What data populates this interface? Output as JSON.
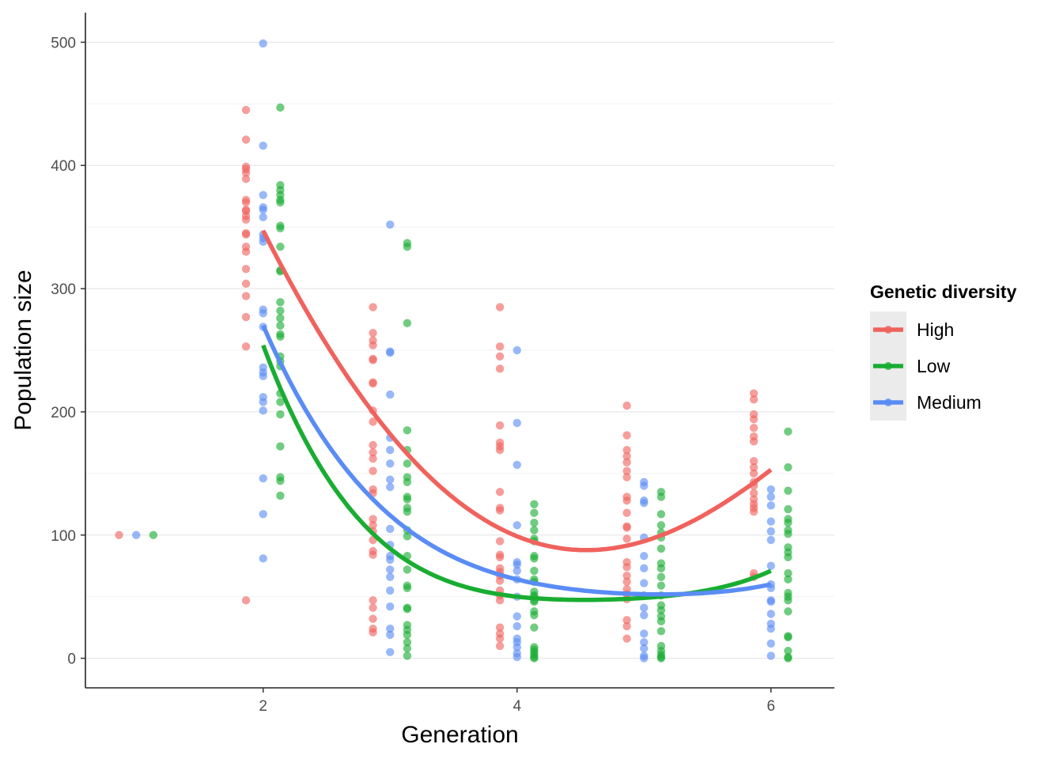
{
  "chart_data": {
    "type": "scatter",
    "xlabel": "Generation",
    "ylabel": "Population size",
    "xlim": [
      0.6,
      6.5
    ],
    "ylim": [
      -24,
      524
    ],
    "x_ticks": [
      2,
      4,
      6
    ],
    "y_ticks": [
      0,
      100,
      200,
      300,
      400,
      500
    ],
    "grid": "horizontal major and minor",
    "legend": {
      "title": "Genetic diversity",
      "position": "right",
      "entries": [
        "High",
        "Low",
        "Medium"
      ]
    },
    "series": [
      {
        "name": "High",
        "color": "#f0625d",
        "dodge": -0.135,
        "points": [
          {
            "x": 1,
            "y": [
              100
            ]
          },
          {
            "x": 2,
            "y": [
              445,
              421,
              399,
              397,
              394,
              389,
              372,
              370,
              364,
              363,
              359,
              356,
              345,
              344,
              334,
              330,
              316,
              304,
              294,
              277,
              253,
              47
            ]
          },
          {
            "x": 3,
            "y": [
              285,
              264,
              258,
              254,
              243,
              242,
              224,
              223,
              201,
              192,
              173,
              167,
              162,
              152,
              137,
              134,
              113,
              108,
              103,
              96,
              87,
              84,
              47,
              41,
              32,
              24,
              21
            ]
          },
          {
            "x": 4,
            "y": [
              285,
              253,
              245,
              235,
              189,
              175,
              172,
              169,
              135,
              122,
              120,
              95,
              84,
              82,
              73,
              70,
              67,
              63,
              55,
              51,
              47,
              25,
              20,
              16,
              10
            ]
          },
          {
            "x": 5,
            "y": [
              205,
              181,
              169,
              164,
              159,
              152,
              147,
              131,
              128,
              118,
              107,
              106,
              97,
              78,
              74,
              67,
              62,
              56,
              52,
              48,
              31,
              26,
              16
            ]
          },
          {
            "x": 6,
            "y": [
              215,
              210,
              198,
              194,
              187,
              180,
              176,
              160,
              155,
              150,
              143,
              140,
              134,
              129,
              125,
              122,
              119,
              69,
              66
            ]
          }
        ],
        "fit": {
          "x": [
            2,
            3,
            4,
            5,
            6
          ],
          "y": [
            347,
            182,
            99,
            95,
            153
          ]
        }
      },
      {
        "name": "Low",
        "color": "#19ad32",
        "dodge": 0.135,
        "points": [
          {
            "x": 1,
            "y": [
              100
            ]
          },
          {
            "x": 2,
            "y": [
              447,
              384,
              380,
              376,
              372,
              370,
              351,
              349,
              334,
              315,
              314,
              289,
              282,
              276,
              270,
              263,
              261,
              245,
              241,
              237,
              215,
              208,
              198,
              172,
              147,
              144,
              132
            ]
          },
          {
            "x": 3,
            "y": [
              337,
              334,
              272,
              185,
              169,
              158,
              147,
              143,
              131,
              129,
              122,
              119,
              104,
              99,
              83,
              72,
              59,
              57,
              41,
              40,
              27,
              23,
              19,
              13,
              8,
              2
            ]
          },
          {
            "x": 4,
            "y": [
              125,
              118,
              110,
              104,
              97,
              95,
              83,
              81,
              71,
              64,
              62,
              54,
              51,
              50,
              47,
              46,
              38,
              35,
              25,
              9,
              7,
              5,
              3,
              1,
              0
            ]
          },
          {
            "x": 5,
            "y": [
              135,
              131,
              117,
              108,
              102,
              98,
              89,
              77,
              73,
              66,
              59,
              51,
              43,
              39,
              34,
              30,
              22,
              10,
              6,
              3,
              1,
              0
            ]
          },
          {
            "x": 6,
            "y": [
              184,
              155,
              136,
              121,
              113,
              110,
              104,
              101,
              90,
              86,
              82,
              69,
              64,
              53,
              50,
              47,
              38,
              18,
              17,
              6,
              1,
              0
            ]
          }
        ],
        "fit": {
          "x": [
            2,
            3,
            4,
            5,
            6
          ],
          "y": [
            254,
            89,
            50,
            49,
            71
          ]
        }
      },
      {
        "name": "Medium",
        "color": "#5a8cf5",
        "dodge": 0,
        "points": [
          {
            "x": 1,
            "y": [
              100
            ]
          },
          {
            "x": 2,
            "y": [
              499,
              416,
              376,
              366,
              364,
              358,
              344,
              341,
              338,
              283,
              280,
              269,
              236,
              232,
              229,
              212,
              208,
              201,
              146,
              117,
              81
            ]
          },
          {
            "x": 3,
            "y": [
              352,
              249,
              248,
              214,
              179,
              169,
              158,
              145,
              139,
              105,
              92,
              83,
              80,
              72,
              66,
              55,
              42,
              24,
              19,
              5
            ]
          },
          {
            "x": 4,
            "y": [
              250,
              191,
              157,
              108,
              78,
              76,
              71,
              64,
              50,
              34,
              26,
              16,
              13,
              9,
              4,
              1
            ]
          },
          {
            "x": 5,
            "y": [
              143,
              140,
              128,
              126,
              98,
              83,
              73,
              61,
              51,
              41,
              35,
              20,
              13,
              8,
              2,
              0
            ]
          },
          {
            "x": 6,
            "y": [
              137,
              131,
              124,
              111,
              103,
              96,
              75,
              60,
              57,
              47,
              46,
              36,
              28,
              24,
              12,
              2
            ]
          }
        ],
        "fit": {
          "x": [
            2,
            3,
            4,
            5,
            6
          ],
          "y": [
            270,
            116,
            64,
            52,
            60
          ]
        }
      }
    ]
  }
}
